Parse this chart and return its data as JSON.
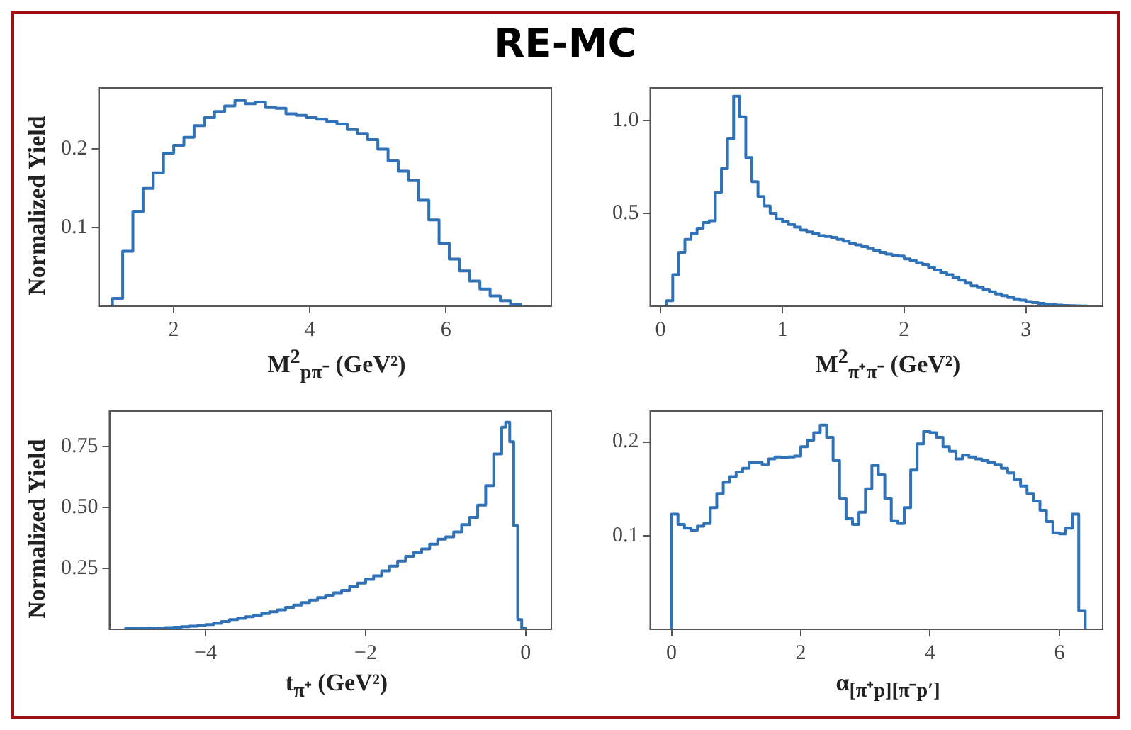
{
  "chart_data": [
    {
      "type": "histogram",
      "title": "RE-MC",
      "xlabel": "M$^{2}$$_{pπ⁻}$ (GeV²)",
      "ylabel": "Normalized Yield",
      "color": "#2f72b8",
      "xlim": [
        0.9,
        7.55
      ],
      "ylim": [
        0,
        0.278
      ],
      "xticks": [
        2,
        4,
        6
      ],
      "yticks": [
        0.1,
        0.2
      ],
      "bins": [
        1.1,
        1.25,
        1.4,
        1.55,
        1.7,
        1.85,
        2.0,
        2.15,
        2.3,
        2.45,
        2.6,
        2.75,
        2.9,
        3.05,
        3.2,
        3.35,
        3.5,
        3.65,
        3.8,
        3.95,
        4.1,
        4.25,
        4.4,
        4.55,
        4.7,
        4.85,
        5.0,
        5.15,
        5.3,
        5.45,
        5.6,
        5.75,
        5.9,
        6.05,
        6.2,
        6.35,
        6.5,
        6.65,
        6.8,
        6.95,
        7.1
      ],
      "values": [
        0.01,
        0.07,
        0.12,
        0.15,
        0.17,
        0.195,
        0.205,
        0.215,
        0.23,
        0.24,
        0.248,
        0.255,
        0.262,
        0.258,
        0.26,
        0.253,
        0.252,
        0.245,
        0.243,
        0.24,
        0.238,
        0.235,
        0.232,
        0.225,
        0.22,
        0.212,
        0.2,
        0.185,
        0.172,
        0.16,
        0.135,
        0.11,
        0.08,
        0.06,
        0.045,
        0.032,
        0.022,
        0.013,
        0.007,
        0.002
      ]
    },
    {
      "type": "histogram",
      "xlabel": "M$^{2}$$_{π⁺π⁻}$ (GeV²)",
      "color": "#2f72b8",
      "xlim": [
        -0.085,
        3.63
      ],
      "ylim": [
        0,
        1.175
      ],
      "xticks": [
        0,
        1,
        2,
        3
      ],
      "yticks": [
        0.5,
        {
          "value": 1,
          "label": "1.0"
        }
      ],
      "bins": [
        0.05,
        0.1,
        0.15,
        0.2,
        0.25,
        0.3,
        0.35,
        0.4,
        0.45,
        0.5,
        0.55,
        0.6,
        0.65,
        0.7,
        0.75,
        0.8,
        0.85,
        0.9,
        0.95,
        1.0,
        1.05,
        1.1,
        1.15,
        1.2,
        1.25,
        1.3,
        1.35,
        1.4,
        1.45,
        1.5,
        1.55,
        1.6,
        1.65,
        1.7,
        1.75,
        1.8,
        1.85,
        1.9,
        1.95,
        2.0,
        2.05,
        2.1,
        2.15,
        2.2,
        2.25,
        2.3,
        2.35,
        2.4,
        2.45,
        2.5,
        2.55,
        2.6,
        2.65,
        2.7,
        2.75,
        2.8,
        2.85,
        2.9,
        2.95,
        3.0,
        3.05,
        3.1,
        3.15,
        3.2,
        3.25,
        3.3,
        3.35,
        3.4,
        3.45,
        3.5
      ],
      "values": [
        0.03,
        0.17,
        0.29,
        0.36,
        0.39,
        0.42,
        0.45,
        0.46,
        0.61,
        0.74,
        0.9,
        1.13,
        1.02,
        0.8,
        0.67,
        0.59,
        0.54,
        0.5,
        0.47,
        0.455,
        0.44,
        0.425,
        0.41,
        0.4,
        0.39,
        0.38,
        0.375,
        0.37,
        0.36,
        0.35,
        0.34,
        0.33,
        0.32,
        0.31,
        0.3,
        0.29,
        0.28,
        0.275,
        0.27,
        0.255,
        0.245,
        0.235,
        0.225,
        0.21,
        0.195,
        0.18,
        0.17,
        0.155,
        0.14,
        0.125,
        0.11,
        0.1,
        0.088,
        0.077,
        0.066,
        0.056,
        0.047,
        0.039,
        0.032,
        0.025,
        0.019,
        0.015,
        0.011,
        0.008,
        0.006,
        0.004,
        0.003,
        0.002,
        0.001
      ]
    },
    {
      "type": "histogram",
      "xlabel": "t$_{π⁺}$ (GeV²)",
      "ylabel": "Normalized Yield",
      "color": "#2f72b8",
      "xlim": [
        -5.2,
        0.32
      ],
      "ylim": [
        0,
        0.896
      ],
      "xticks": [
        {
          "value": -4,
          "label": "−4"
        },
        {
          "value": -2,
          "label": "−2"
        },
        0
      ],
      "yticks": [
        0.25,
        {
          "value": 0.5,
          "label": "0.50"
        },
        0.75
      ],
      "bins": [
        -5.0,
        -4.9,
        -4.8,
        -4.7,
        -4.6,
        -4.5,
        -4.4,
        -4.3,
        -4.2,
        -4.1,
        -4.0,
        -3.9,
        -3.8,
        -3.7,
        -3.6,
        -3.5,
        -3.4,
        -3.3,
        -3.2,
        -3.1,
        -3.0,
        -2.9,
        -2.8,
        -2.7,
        -2.6,
        -2.5,
        -2.4,
        -2.3,
        -2.2,
        -2.1,
        -2.0,
        -1.9,
        -1.8,
        -1.7,
        -1.6,
        -1.5,
        -1.4,
        -1.3,
        -1.2,
        -1.1,
        -1.0,
        -0.9,
        -0.8,
        -0.7,
        -0.6,
        -0.5,
        -0.4,
        -0.3,
        -0.25,
        -0.2,
        -0.15,
        -0.1,
        -0.05,
        0
      ],
      "values": [
        0.003,
        0.003,
        0.004,
        0.005,
        0.006,
        0.007,
        0.009,
        0.011,
        0.013,
        0.016,
        0.02,
        0.025,
        0.032,
        0.04,
        0.045,
        0.052,
        0.058,
        0.065,
        0.072,
        0.08,
        0.09,
        0.1,
        0.11,
        0.12,
        0.13,
        0.14,
        0.15,
        0.16,
        0.175,
        0.19,
        0.205,
        0.22,
        0.24,
        0.26,
        0.28,
        0.3,
        0.315,
        0.33,
        0.35,
        0.37,
        0.38,
        0.4,
        0.43,
        0.46,
        0.51,
        0.59,
        0.72,
        0.83,
        0.85,
        0.77,
        0.425,
        0.04,
        0.005
      ]
    },
    {
      "type": "histogram",
      "xlabel": "α$_{[π⁺p][π⁻p′]}$",
      "color": "#2f72b8",
      "xlim": [
        -0.33,
        6.67
      ],
      "ylim": [
        0,
        0.233
      ],
      "xticks": [
        0,
        2,
        4,
        6
      ],
      "yticks": [
        0.1,
        0.2
      ],
      "bins": [
        0,
        0.1,
        0.2,
        0.3,
        0.4,
        0.5,
        0.6,
        0.7,
        0.8,
        0.9,
        1.0,
        1.1,
        1.2,
        1.3,
        1.4,
        1.5,
        1.6,
        1.7,
        1.8,
        1.9,
        2.0,
        2.1,
        2.2,
        2.3,
        2.4,
        2.5,
        2.6,
        2.7,
        2.8,
        2.9,
        3.0,
        3.1,
        3.2,
        3.3,
        3.4,
        3.5,
        3.6,
        3.7,
        3.8,
        3.9,
        4.0,
        4.1,
        4.2,
        4.3,
        4.4,
        4.5,
        4.6,
        4.7,
        4.8,
        4.9,
        5.0,
        5.1,
        5.2,
        5.3,
        5.4,
        5.5,
        5.6,
        5.7,
        5.8,
        5.9,
        6.0,
        6.1,
        6.2,
        6.3,
        6.4
      ],
      "values": [
        0.123,
        0.112,
        0.108,
        0.106,
        0.11,
        0.113,
        0.13,
        0.145,
        0.157,
        0.163,
        0.168,
        0.172,
        0.178,
        0.178,
        0.176,
        0.182,
        0.184,
        0.183,
        0.184,
        0.185,
        0.195,
        0.202,
        0.21,
        0.218,
        0.205,
        0.18,
        0.14,
        0.118,
        0.112,
        0.125,
        0.15,
        0.175,
        0.165,
        0.14,
        0.116,
        0.113,
        0.13,
        0.17,
        0.198,
        0.211,
        0.21,
        0.205,
        0.195,
        0.19,
        0.182,
        0.186,
        0.184,
        0.182,
        0.18,
        0.178,
        0.176,
        0.172,
        0.167,
        0.16,
        0.153,
        0.145,
        0.137,
        0.127,
        0.115,
        0.103,
        0.102,
        0.108,
        0.123,
        0.02
      ]
    }
  ]
}
